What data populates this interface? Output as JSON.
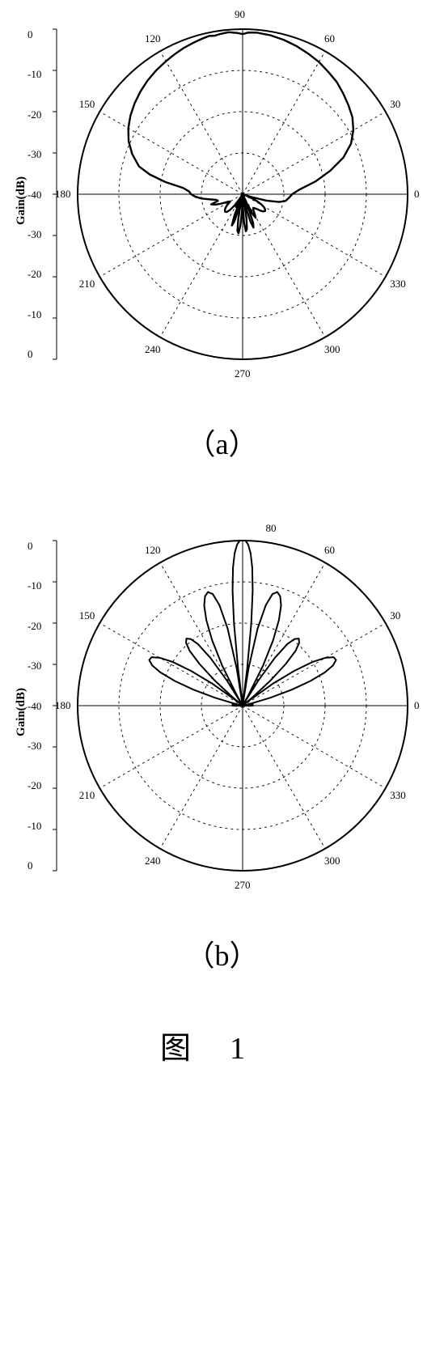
{
  "chart_a": {
    "type": "polar-radiation-pattern",
    "ylabel": "Gain(dB)",
    "label_fontsize": 15,
    "angle_ticks": [
      0,
      30,
      60,
      90,
      120,
      150,
      180,
      210,
      240,
      270,
      300,
      330
    ],
    "radial_ticks": [
      0,
      -10,
      -20,
      -30,
      -40,
      -30,
      -20,
      -10,
      0
    ],
    "rlim": [
      -40,
      0
    ],
    "background_color": "#ffffff",
    "grid_color": "#000000",
    "grid_dash": "3,4",
    "outer_color": "#000000",
    "curve_color": "#000000",
    "curve_stroke_width": 2.4,
    "subplot_label": "（a）",
    "pattern": [
      [
        0,
        -28
      ],
      [
        5,
        -26
      ],
      [
        10,
        -22
      ],
      [
        15,
        -18
      ],
      [
        20,
        -14
      ],
      [
        25,
        -11
      ],
      [
        30,
        -9
      ],
      [
        35,
        -7.5
      ],
      [
        40,
        -6.5
      ],
      [
        45,
        -5.5
      ],
      [
        50,
        -4.5
      ],
      [
        55,
        -3.8
      ],
      [
        60,
        -3
      ],
      [
        65,
        -2.4
      ],
      [
        70,
        -1.8
      ],
      [
        75,
        -1.3
      ],
      [
        80,
        -0.9
      ],
      [
        85,
        -0.7
      ],
      [
        88,
        -0.8
      ],
      [
        90,
        -1.2
      ],
      [
        92,
        -0.9
      ],
      [
        95,
        -0.6
      ],
      [
        98,
        -0.8
      ],
      [
        100,
        -1
      ],
      [
        102,
        -0.8
      ],
      [
        105,
        -1.1
      ],
      [
        108,
        -1.4
      ],
      [
        112,
        -1.8
      ],
      [
        116,
        -2.3
      ],
      [
        120,
        -2.8
      ],
      [
        125,
        -3.4
      ],
      [
        130,
        -4.1
      ],
      [
        135,
        -4.9
      ],
      [
        140,
        -5.8
      ],
      [
        145,
        -6.8
      ],
      [
        150,
        -8
      ],
      [
        155,
        -9.5
      ],
      [
        160,
        -11.5
      ],
      [
        165,
        -14
      ],
      [
        168,
        -17
      ],
      [
        171,
        -21
      ],
      [
        174,
        -25.5
      ],
      [
        177,
        -27
      ],
      [
        180,
        -27.5
      ],
      [
        183,
        -28.5
      ],
      [
        186,
        -30
      ],
      [
        189,
        -32
      ],
      [
        192,
        -33.5
      ],
      [
        195,
        -33.8
      ],
      [
        198,
        -32
      ],
      [
        201,
        -33
      ],
      [
        204,
        -34.5
      ],
      [
        207,
        -36
      ],
      [
        210,
        -36.5
      ],
      [
        213,
        -36
      ],
      [
        216,
        -35.2
      ],
      [
        219,
        -34.6
      ],
      [
        222,
        -34.2
      ],
      [
        225,
        -34
      ],
      [
        228,
        -34.2
      ],
      [
        231,
        -35
      ],
      [
        234,
        -36.5
      ],
      [
        237,
        -38.5
      ],
      [
        239,
        -40
      ],
      [
        240,
        -38.5
      ],
      [
        242,
        -36.5
      ],
      [
        244,
        -38
      ],
      [
        246,
        -40
      ],
      [
        247,
        -38
      ],
      [
        249,
        -34.5
      ],
      [
        251,
        -32
      ],
      [
        253,
        -33
      ],
      [
        255,
        -36
      ],
      [
        257,
        -40
      ],
      [
        258,
        -38
      ],
      [
        260,
        -34
      ],
      [
        262,
        -31
      ],
      [
        264,
        -30.5
      ],
      [
        266,
        -32.5
      ],
      [
        268,
        -36
      ],
      [
        270,
        -40
      ],
      [
        271,
        -37
      ],
      [
        273,
        -33
      ],
      [
        275,
        -31
      ],
      [
        277,
        -31.5
      ],
      [
        279,
        -34
      ],
      [
        281,
        -38
      ],
      [
        283,
        -40
      ],
      [
        284,
        -37
      ],
      [
        286,
        -33
      ],
      [
        288,
        -31.5
      ],
      [
        290,
        -32.5
      ],
      [
        292,
        -35.5
      ],
      [
        294,
        -40
      ],
      [
        295,
        -37.5
      ],
      [
        297,
        -34.5
      ],
      [
        299,
        -33.5
      ],
      [
        301,
        -34.2
      ],
      [
        303,
        -35
      ],
      [
        305,
        -35.5
      ],
      [
        308,
        -35.8
      ],
      [
        311,
        -35.5
      ],
      [
        314,
        -35
      ],
      [
        317,
        -34.2
      ],
      [
        320,
        -33.5
      ],
      [
        323,
        -33.2
      ],
      [
        326,
        -33.4
      ],
      [
        329,
        -34
      ],
      [
        332,
        -35
      ],
      [
        335,
        -36.5
      ],
      [
        338,
        -38.5
      ],
      [
        340,
        -40
      ],
      [
        342,
        -38
      ],
      [
        345,
        -34
      ],
      [
        348,
        -31
      ],
      [
        351,
        -29.5
      ],
      [
        354,
        -29
      ],
      [
        357,
        -28.5
      ],
      [
        360,
        -28
      ]
    ]
  },
  "chart_b": {
    "type": "polar-radiation-pattern",
    "ylabel": "Gain(dB)",
    "label_fontsize": 15,
    "angle_ticks": [
      0,
      30,
      60,
      80,
      120,
      150,
      180,
      210,
      240,
      270,
      300,
      330
    ],
    "radial_ticks": [
      0,
      -10,
      -20,
      -30,
      -40,
      -30,
      -20,
      -10,
      0
    ],
    "rlim": [
      -40,
      0
    ],
    "background_color": "#ffffff",
    "grid_color": "#000000",
    "grid_dash": "3,4",
    "outer_color": "#000000",
    "curve_color": "#000000",
    "curve_stroke_width": 2.0,
    "subplot_label": "（b）",
    "pattern": [
      [
        0,
        -37.5
      ],
      [
        2,
        -38.5
      ],
      [
        4,
        -40
      ],
      [
        5,
        -38.5
      ],
      [
        7,
        -37.5
      ],
      [
        9,
        -37.5
      ],
      [
        11,
        -38.5
      ],
      [
        13,
        -40
      ],
      [
        14,
        -38
      ],
      [
        16,
        -33
      ],
      [
        18,
        -27.5
      ],
      [
        20,
        -22.5
      ],
      [
        22,
        -18.5
      ],
      [
        24,
        -16
      ],
      [
        26,
        -14.8
      ],
      [
        28,
        -15
      ],
      [
        30,
        -16.8
      ],
      [
        32,
        -20
      ],
      [
        34,
        -25
      ],
      [
        36,
        -31
      ],
      [
        38,
        -38
      ],
      [
        39,
        -40
      ],
      [
        40,
        -37
      ],
      [
        42,
        -31
      ],
      [
        44,
        -25.5
      ],
      [
        46,
        -21.5
      ],
      [
        48,
        -19.5
      ],
      [
        50,
        -18.8
      ],
      [
        52,
        -19.5
      ],
      [
        54,
        -21.5
      ],
      [
        56,
        -26
      ],
      [
        58,
        -33
      ],
      [
        60,
        -40
      ],
      [
        61,
        -37
      ],
      [
        63,
        -29
      ],
      [
        65,
        -22.5
      ],
      [
        67,
        -17.5
      ],
      [
        69,
        -14
      ],
      [
        71,
        -12
      ],
      [
        73,
        -11.2
      ],
      [
        75,
        -12
      ],
      [
        77,
        -15
      ],
      [
        79,
        -21
      ],
      [
        81,
        -31
      ],
      [
        82,
        -40
      ],
      [
        83,
        -31
      ],
      [
        84,
        -20
      ],
      [
        85,
        -12
      ],
      [
        86,
        -6.5
      ],
      [
        87,
        -3
      ],
      [
        88,
        -1
      ],
      [
        89,
        0
      ],
      [
        90,
        0
      ],
      [
        91,
        0
      ],
      [
        92,
        -1
      ],
      [
        93,
        -3
      ],
      [
        94,
        -6.5
      ],
      [
        95,
        -12
      ],
      [
        96,
        -20
      ],
      [
        97,
        -31
      ],
      [
        98,
        -40
      ],
      [
        99,
        -31
      ],
      [
        101,
        -21
      ],
      [
        103,
        -15
      ],
      [
        105,
        -12
      ],
      [
        107,
        -11.2
      ],
      [
        109,
        -12
      ],
      [
        111,
        -14
      ],
      [
        113,
        -17.5
      ],
      [
        115,
        -22.5
      ],
      [
        117,
        -29
      ],
      [
        119,
        -37
      ],
      [
        120,
        -40
      ],
      [
        122,
        -33
      ],
      [
        124,
        -26
      ],
      [
        126,
        -21.5
      ],
      [
        128,
        -19.5
      ],
      [
        130,
        -18.8
      ],
      [
        132,
        -19.5
      ],
      [
        134,
        -21.5
      ],
      [
        136,
        -25.5
      ],
      [
        138,
        -31
      ],
      [
        140,
        -37
      ],
      [
        141,
        -40
      ],
      [
        142,
        -38
      ],
      [
        144,
        -31
      ],
      [
        146,
        -25
      ],
      [
        148,
        -20
      ],
      [
        150,
        -16.8
      ],
      [
        152,
        -15
      ],
      [
        154,
        -14.8
      ],
      [
        156,
        -16
      ],
      [
        158,
        -18.5
      ],
      [
        160,
        -22.5
      ],
      [
        162,
        -27.5
      ],
      [
        164,
        -33
      ],
      [
        166,
        -38
      ],
      [
        167,
        -40
      ],
      [
        169,
        -38.5
      ],
      [
        171,
        -37.5
      ],
      [
        173,
        -37.5
      ],
      [
        175,
        -38.5
      ],
      [
        176,
        -40
      ],
      [
        178,
        -38.5
      ],
      [
        180,
        -37.5
      ],
      [
        182,
        -38.5
      ],
      [
        184,
        -40
      ],
      [
        220,
        -40
      ],
      [
        230,
        -40
      ],
      [
        260,
        -40
      ],
      [
        270,
        -40
      ],
      [
        290,
        -40
      ],
      [
        320,
        -40
      ],
      [
        350,
        -40
      ],
      [
        356,
        -40
      ],
      [
        358,
        -38.5
      ],
      [
        360,
        -37.5
      ]
    ]
  },
  "figure_label": "图1"
}
